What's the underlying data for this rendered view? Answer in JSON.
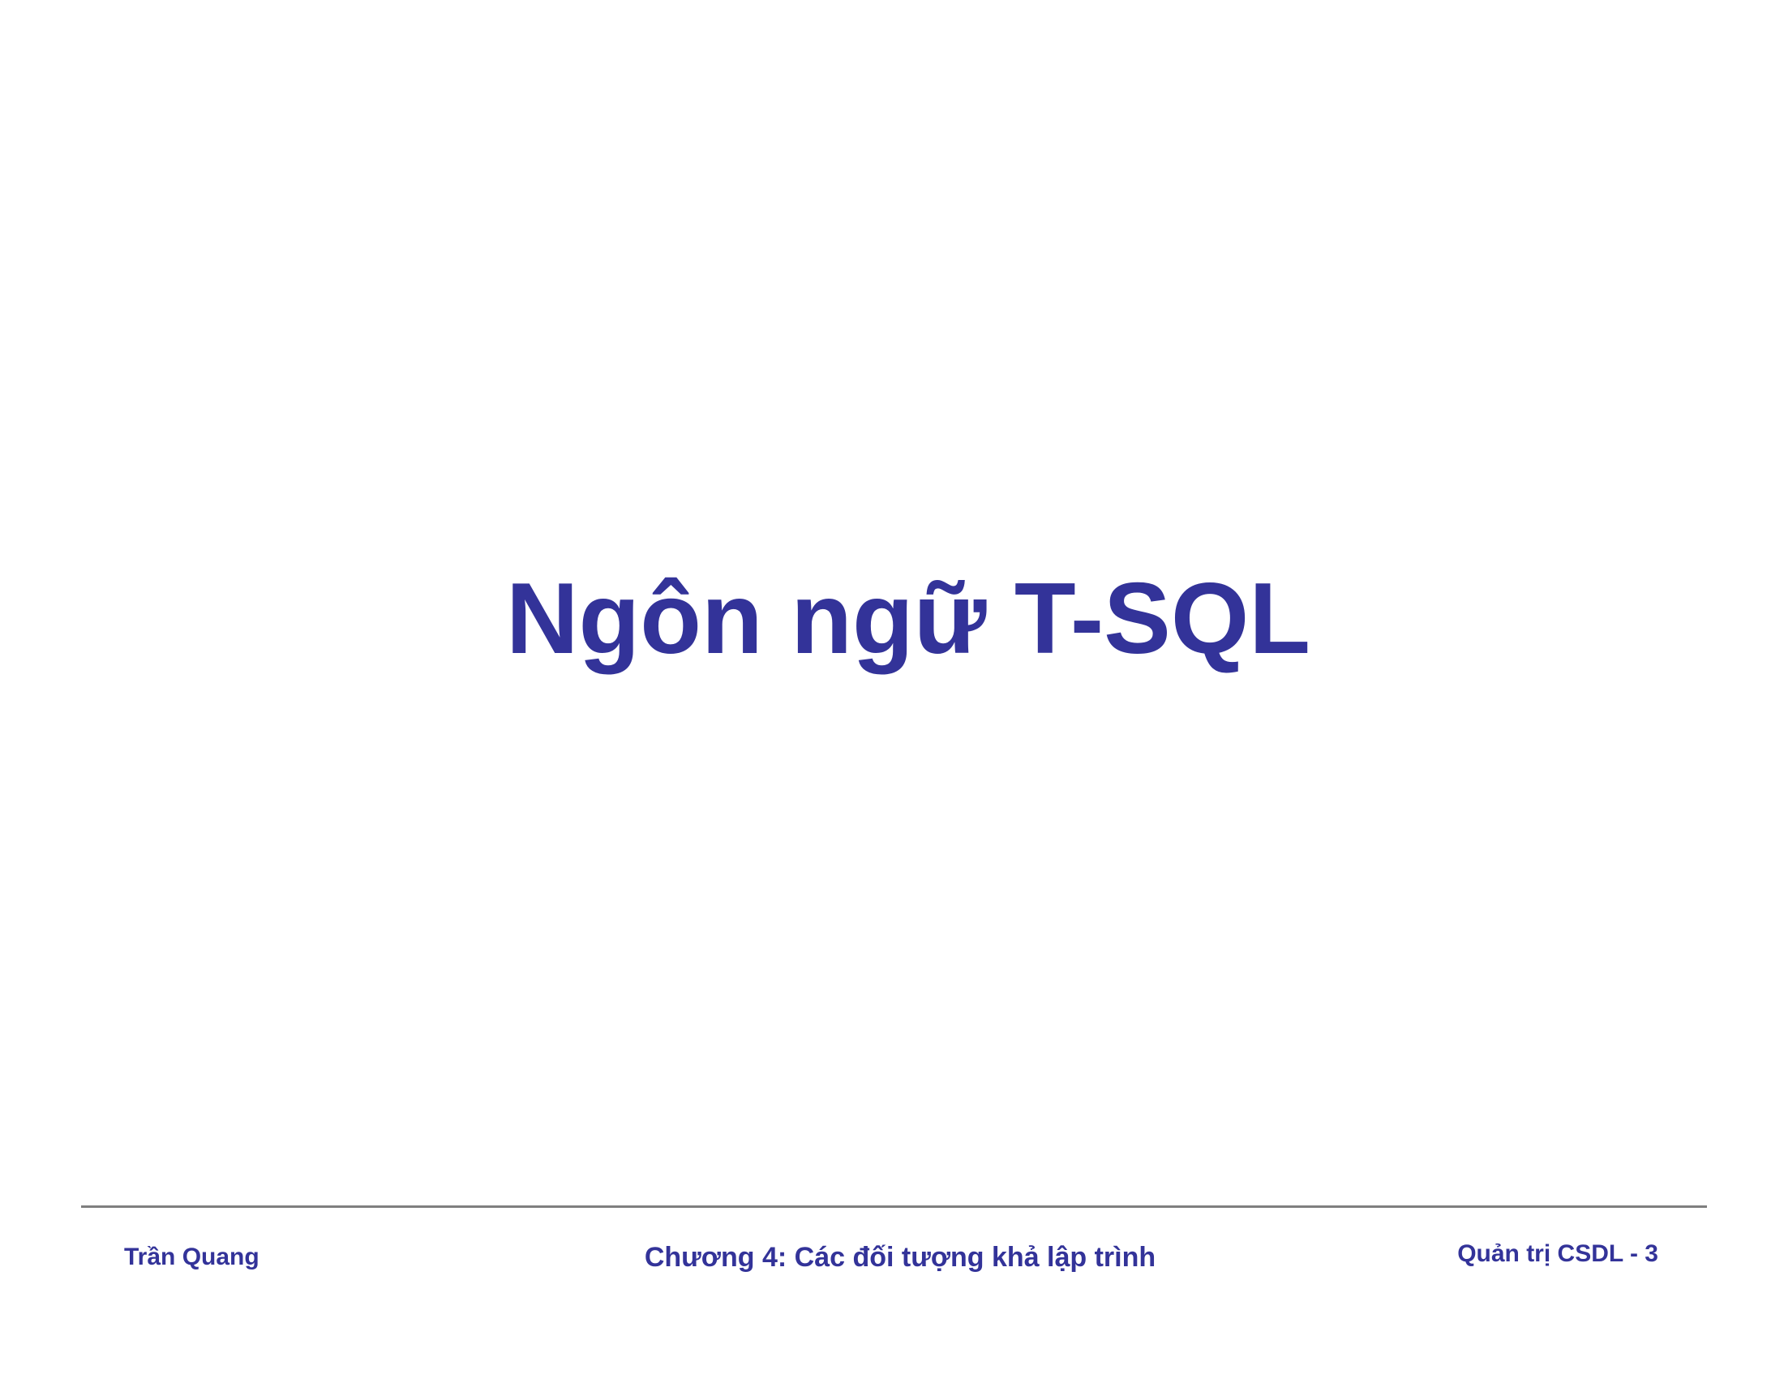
{
  "slide": {
    "title": "Ngôn ngữ T-SQL",
    "footer": {
      "author": "Trần Quang",
      "chapter": "Chương 4: Các đối tượng khả lập trình",
      "course_page": "Quản trị CSDL - 3"
    }
  },
  "colors": {
    "text": "#333399",
    "rule": "#7f7f7f",
    "background": "#ffffff"
  }
}
